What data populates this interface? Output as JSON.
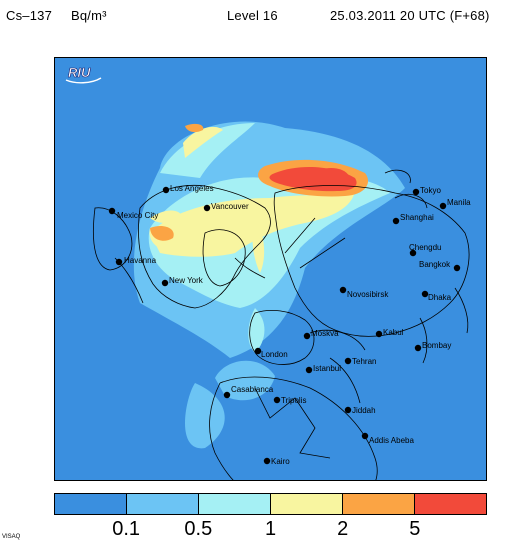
{
  "header": {
    "species": "Cs–137",
    "unit": "Bq/m³",
    "level": "Level 16",
    "time": "25.03.2011 20 UTC (F+68)"
  },
  "logo": {
    "text": "RIU"
  },
  "map": {
    "background_color": "#3a8fdf",
    "cities": [
      {
        "name": "Tokyo"
      },
      {
        "name": "Manila"
      },
      {
        "name": "Los Angeles"
      },
      {
        "name": "Vancouver"
      },
      {
        "name": "Shanghai"
      },
      {
        "name": "Mexico City"
      },
      {
        "name": "Chengdu"
      },
      {
        "name": "Bangkok"
      },
      {
        "name": "Havanna"
      },
      {
        "name": "New York"
      },
      {
        "name": "Novosibirsk"
      },
      {
        "name": "Dhaka"
      },
      {
        "name": "Moskva"
      },
      {
        "name": "Kabul"
      },
      {
        "name": "London"
      },
      {
        "name": "Bombay"
      },
      {
        "name": "Tehran"
      },
      {
        "name": "Istanbul"
      },
      {
        "name": "Casablanca"
      },
      {
        "name": "Tripolis"
      },
      {
        "name": "Jiddah"
      },
      {
        "name": "Addis Abeba"
      },
      {
        "name": "Kairo"
      }
    ]
  },
  "legend": {
    "colors": [
      "#3a8fdf",
      "#6cc4f4",
      "#a5f0f4",
      "#f8f5a0",
      "#fba444",
      "#f24a3a"
    ],
    "tick_labels": [
      "0.1",
      "0.5",
      "1",
      "2",
      "5"
    ]
  },
  "footer": {
    "credit": "VISAQ"
  }
}
